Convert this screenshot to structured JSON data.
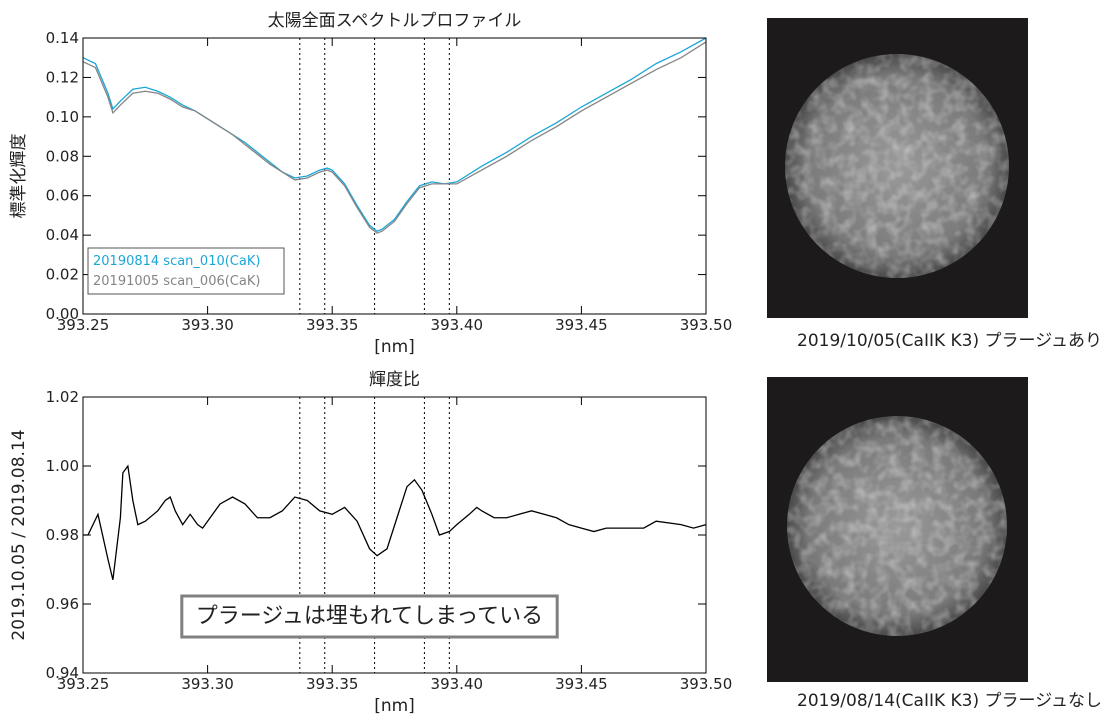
{
  "chart_data": [
    {
      "type": "line",
      "title": "太陽全面スペクトルプロファイル",
      "x_label": "[nm]",
      "y_label": "標準化輝度",
      "xlim": [
        393.25,
        393.5
      ],
      "xticks": [
        393.25,
        {
          "value": 393.3,
          "label": "393.30"
        },
        393.35,
        {
          "value": 393.4,
          "label": "393.40"
        },
        393.45,
        {
          "value": 393.5,
          "label": "393.50"
        }
      ],
      "ylim": [
        0,
        0.14
      ],
      "yticks": [
        {
          "value": 0,
          "label": "0.00"
        },
        0.02,
        0.04,
        0.06,
        0.08,
        {
          "value": 0.1,
          "label": "0.10"
        },
        0.12,
        0.14
      ],
      "vlines": [
        393.337,
        393.347,
        393.367,
        393.387,
        393.397
      ],
      "legend": "lower left",
      "x": [
        393.25,
        393.255,
        393.26,
        393.262,
        393.265,
        393.27,
        393.275,
        393.28,
        393.285,
        393.29,
        393.295,
        393.3,
        393.305,
        393.31,
        393.315,
        393.32,
        393.325,
        393.33,
        393.335,
        393.34,
        393.345,
        393.348,
        393.35,
        393.355,
        393.36,
        393.365,
        393.368,
        393.37,
        393.375,
        393.38,
        393.385,
        393.39,
        393.395,
        393.4,
        393.41,
        393.42,
        393.43,
        393.44,
        393.45,
        393.46,
        393.47,
        393.48,
        393.49,
        393.5
      ],
      "series": [
        {
          "name": "20190814 scan_010(CaK)",
          "color": "#1ba6d8",
          "values": [
            0.13,
            0.127,
            0.112,
            0.104,
            0.108,
            0.114,
            0.115,
            0.113,
            0.11,
            0.106,
            0.103,
            0.099,
            0.095,
            0.091,
            0.087,
            0.082,
            0.077,
            0.072,
            0.069,
            0.07,
            0.073,
            0.074,
            0.073,
            0.066,
            0.055,
            0.045,
            0.042,
            0.043,
            0.048,
            0.057,
            0.065,
            0.067,
            0.066,
            0.067,
            0.075,
            0.082,
            0.09,
            0.097,
            0.105,
            0.112,
            0.119,
            0.127,
            0.133,
            0.14
          ]
        },
        {
          "name": "20191005 scan_006(CaK)",
          "color": "#858585",
          "values": [
            0.128,
            0.125,
            0.11,
            0.102,
            0.106,
            0.112,
            0.113,
            0.112,
            0.109,
            0.105,
            0.103,
            0.099,
            0.095,
            0.091,
            0.086,
            0.081,
            0.076,
            0.072,
            0.068,
            0.069,
            0.072,
            0.073,
            0.072,
            0.065,
            0.054,
            0.044,
            0.041,
            0.042,
            0.047,
            0.056,
            0.064,
            0.066,
            0.066,
            0.066,
            0.073,
            0.08,
            0.088,
            0.095,
            0.103,
            0.11,
            0.117,
            0.124,
            0.13,
            0.138
          ]
        }
      ]
    },
    {
      "type": "line",
      "title": "輝度比",
      "x_label": "[nm]",
      "y_label": "2019.10.05 / 2019.08.14",
      "annotation": "プラージュは埋もれてしまっている",
      "xlim": [
        393.25,
        393.5
      ],
      "xticks": [
        393.25,
        {
          "value": 393.3,
          "label": "393.30"
        },
        393.35,
        {
          "value": 393.4,
          "label": "393.40"
        },
        393.45,
        {
          "value": 393.5,
          "label": "393.50"
        }
      ],
      "ylim": [
        0.94,
        1.02
      ],
      "yticks": [
        0.94,
        0.96,
        0.98,
        {
          "value": 1,
          "label": "1.00"
        },
        1.02
      ],
      "vlines": [
        393.337,
        393.347,
        393.367,
        393.387,
        393.397
      ],
      "color": "#000000",
      "x": [
        393.25,
        393.252,
        393.256,
        393.26,
        393.262,
        393.265,
        393.266,
        393.268,
        393.27,
        393.272,
        393.275,
        393.28,
        393.283,
        393.285,
        393.287,
        393.29,
        393.293,
        393.296,
        393.298,
        393.3,
        393.305,
        393.31,
        393.315,
        393.32,
        393.325,
        393.33,
        393.335,
        393.34,
        393.345,
        393.35,
        393.355,
        393.36,
        393.365,
        393.368,
        393.372,
        393.376,
        393.38,
        393.383,
        393.386,
        393.39,
        393.393,
        393.397,
        393.4,
        393.405,
        393.408,
        393.41,
        393.415,
        393.42,
        393.425,
        393.43,
        393.435,
        393.44,
        393.445,
        393.45,
        393.455,
        393.46,
        393.47,
        393.475,
        393.48,
        393.49,
        393.495,
        393.5
      ],
      "values": [
        0.98,
        0.98,
        0.986,
        0.973,
        0.967,
        0.985,
        0.998,
        1.0,
        0.99,
        0.983,
        0.984,
        0.987,
        0.99,
        0.991,
        0.987,
        0.983,
        0.986,
        0.983,
        0.982,
        0.984,
        0.989,
        0.991,
        0.989,
        0.985,
        0.985,
        0.987,
        0.991,
        0.99,
        0.987,
        0.986,
        0.988,
        0.984,
        0.976,
        0.974,
        0.976,
        0.985,
        0.994,
        0.996,
        0.993,
        0.986,
        0.98,
        0.981,
        0.983,
        0.986,
        0.988,
        0.987,
        0.985,
        0.985,
        0.986,
        0.987,
        0.986,
        0.985,
        0.983,
        0.982,
        0.981,
        0.982,
        0.982,
        0.982,
        0.984,
        0.983,
        0.982,
        0.983
      ]
    }
  ],
  "images": [
    {
      "caption": "2019/10/05(CaIIK K3) プラージュあり"
    },
    {
      "caption": "2019/08/14(CaIIK K3) プラージュなし"
    }
  ]
}
